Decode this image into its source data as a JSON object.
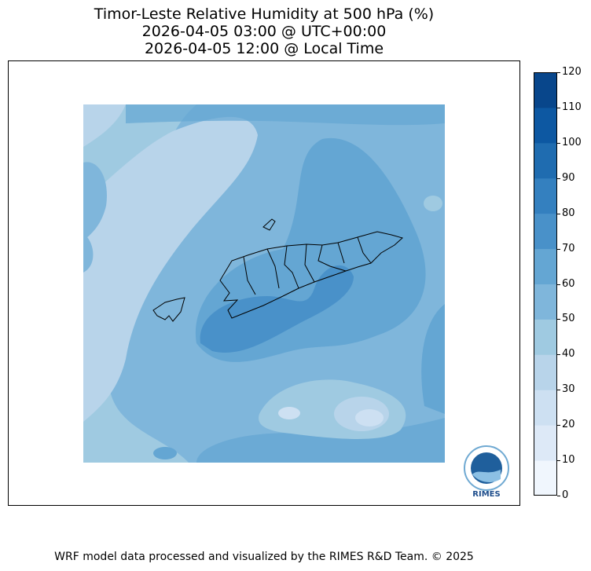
{
  "title": {
    "line1": "Timor-Leste Relative Humidity at 500 hPa (%)",
    "line2": "2026-04-05 03:00 @ UTC+00:00",
    "line3": "2026-04-05 12:00 @ Local Time"
  },
  "colorbar": {
    "ticks": [
      "0",
      "10",
      "20",
      "30",
      "40",
      "50",
      "60",
      "70",
      "80",
      "90",
      "100",
      "110",
      "120"
    ],
    "colors": [
      "#f0f6fd",
      "#dde9f7",
      "#cde0f2",
      "#b8d4ea",
      "#9fcae1",
      "#7fb6db",
      "#64a6d3",
      "#4991c9",
      "#3480bf",
      "#1f6cb0",
      "#0d58a2",
      "#08468b",
      "#08306b"
    ]
  },
  "logo": {
    "text": "RIMES"
  },
  "footer": "WRF model data processed and visualized by the RIMES R&D Team. © 2025"
}
